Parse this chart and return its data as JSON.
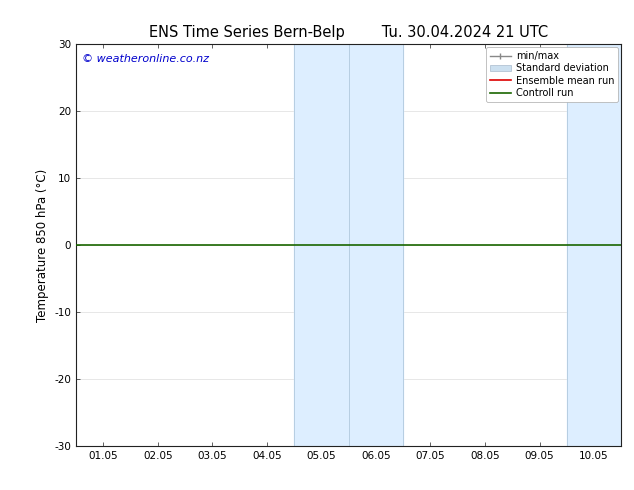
{
  "title": "ENS Time Series Bern-Belp        Tu. 30.04.2024 21 UTC",
  "ylabel": "Temperature 850 hPa (°C)",
  "xlabel_ticks": [
    "01.05",
    "02.05",
    "03.05",
    "04.05",
    "05.05",
    "06.05",
    "07.05",
    "08.05",
    "09.05",
    "10.05"
  ],
  "ylim": [
    -30,
    30
  ],
  "yticks": [
    -30,
    -20,
    -10,
    0,
    10,
    20,
    30
  ],
  "bg_color": "#ffffff",
  "plot_bg_color": "#ffffff",
  "shaded_bands": [
    {
      "x_start": 3.5,
      "x_end": 4.5
    },
    {
      "x_start": 4.5,
      "x_end": 5.5
    },
    {
      "x_start": 8.5,
      "x_end": 9.5
    }
  ],
  "band_color": "#ddeeff",
  "zero_line_color": "#1a6600",
  "zero_line_y": 0,
  "watermark_text": "© weatheronline.co.nz",
  "watermark_color": "#0000cc",
  "legend_items": [
    {
      "label": "min/max"
    },
    {
      "label": "Standard deviation"
    },
    {
      "label": "Ensemble mean run"
    },
    {
      "label": "Controll run"
    }
  ],
  "x_positions": [
    0,
    1,
    2,
    3,
    4,
    5,
    6,
    7,
    8,
    9
  ],
  "x_min": -0.5,
  "x_max": 9.5,
  "tick_fontsize": 7.5,
  "label_fontsize": 8.5,
  "title_fontsize": 10.5
}
